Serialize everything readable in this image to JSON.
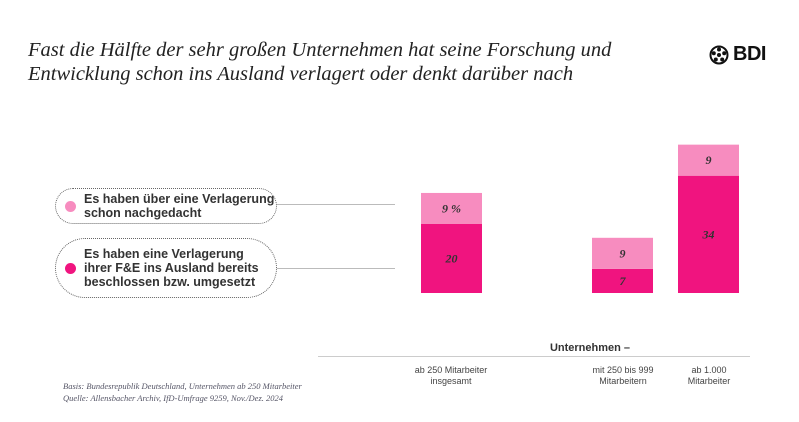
{
  "title_lines": [
    "Fast die Hälfte der sehr großen Unternehmen hat seine Forschung und",
    "Entwicklung schon ins Ausland verlagert oder denkt darüber nach"
  ],
  "logo": {
    "text": "BDI",
    "icon": "bdi-wheel-icon"
  },
  "footnote": [
    "Basis: Bundesrepublik Deutschland, Unternehmen ab 250 Mitarbeiter",
    "Quelle: Allensbacher Archiv, IfD-Umfrage 9259, Nov./Dez. 2024"
  ],
  "chart_data": {
    "type": "bar",
    "stacked": true,
    "unit": "%",
    "group_label": "Unternehmen –",
    "categories": [
      [
        "ab 250 Mitarbeiter",
        "insgesamt"
      ],
      [
        "mit 250 bis 999",
        "Mitarbeitern"
      ],
      [
        "ab 1.000",
        "Mitarbeiter"
      ]
    ],
    "series": [
      {
        "name": [
          "Es haben eine Verlagerung",
          "ihrer F&E ins Ausland bereits",
          "beschlossen bzw. umgesetzt"
        ],
        "values": [
          20,
          7,
          34
        ],
        "color": "#f0147f",
        "labels": [
          "20",
          "7",
          "34"
        ]
      },
      {
        "name": [
          "Es haben über eine Verlagerung",
          "schon nachgedacht"
        ],
        "values": [
          9,
          9,
          9
        ],
        "color": "#f78cbf",
        "labels": [
          "9 %",
          "9",
          "9"
        ]
      }
    ],
    "legend_placement": "left",
    "grid": false
  }
}
